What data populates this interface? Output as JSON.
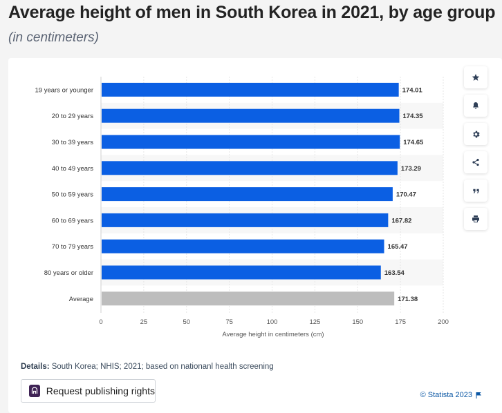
{
  "header": {
    "title": "Average height of men in South Korea in 2021, by age group",
    "subtitle": "(in centimeters)"
  },
  "chart_data": {
    "type": "bar",
    "orientation": "horizontal",
    "categories": [
      "19 years or younger",
      "20 to 29 years",
      "30 to 39 years",
      "40 to 49 years",
      "50 to 59 years",
      "60 to 69 years",
      "70 to 79 years",
      "80 years or older",
      "Average"
    ],
    "values": [
      174.01,
      174.35,
      174.65,
      173.29,
      170.47,
      167.82,
      165.47,
      163.54,
      171.38
    ],
    "value_labels": [
      "174.01",
      "174.35",
      "174.65",
      "173.29",
      "170.47",
      "167.82",
      "165.47",
      "163.54",
      "171.38"
    ],
    "bar_colors": [
      "#0b5fe3",
      "#0b5fe3",
      "#0b5fe3",
      "#0b5fe3",
      "#0b5fe3",
      "#0b5fe3",
      "#0b5fe3",
      "#0b5fe3",
      "#bdbdbd"
    ],
    "xlabel": "Average height in centimeters (cm)",
    "xlim": [
      0,
      200
    ],
    "xticks": [
      0,
      25,
      50,
      75,
      100,
      125,
      150,
      175,
      200
    ],
    "xtick_labels": [
      "0",
      "25",
      "50",
      "75",
      "100",
      "125",
      "150",
      "175",
      "200"
    ],
    "grid": true
  },
  "toolbar": {
    "items": [
      {
        "name": "favorite",
        "icon": "star-icon"
      },
      {
        "name": "notification",
        "icon": "bell-icon"
      },
      {
        "name": "settings",
        "icon": "gear-icon"
      },
      {
        "name": "share",
        "icon": "share-icon"
      },
      {
        "name": "cite",
        "icon": "quote-icon"
      },
      {
        "name": "print",
        "icon": "print-icon"
      }
    ]
  },
  "footer": {
    "details_label": "Details:",
    "details_text": " South Korea; NHIS; 2021; based on nationanl health screening",
    "publish_button": "Request publishing rights",
    "credit": "© Statista 2023"
  },
  "colors": {
    "bar": "#0b5fe3",
    "average_bar": "#bdbdbd",
    "accent": "#0b57a4"
  }
}
